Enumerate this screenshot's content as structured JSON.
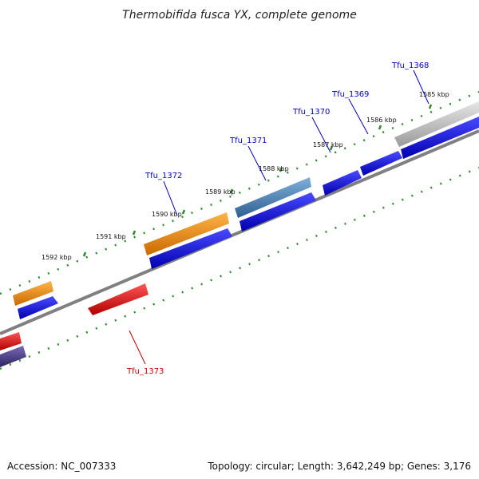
{
  "title": "Thermobifida fusca YX, complete genome",
  "footer": {
    "accession": "Accession: NC_007333",
    "topology": "Topology: circular; Length: 3,642,249 bp; Genes: 3,176"
  },
  "tick_labels": [
    "1585 kbp",
    "1586 kbp",
    "1587 kbp",
    "1588 kbp",
    "1589 kbp",
    "1590 kbp",
    "1591 kbp",
    "1592 kbp"
  ],
  "gene_labels": [
    {
      "text": "Tfu_1368",
      "color": "#0000cc"
    },
    {
      "text": "Tfu_1369",
      "color": "#0000cc"
    },
    {
      "text": "Tfu_1370",
      "color": "#0000cc"
    },
    {
      "text": "Tfu_1371",
      "color": "#0000cc"
    },
    {
      "text": "Tfu_1372",
      "color": "#0000cc"
    },
    {
      "text": "Tfu_1373",
      "color": "#cc0000"
    }
  ],
  "colors": {
    "backbone": "#808080",
    "tick": "#2e8b2e",
    "forward_cds": "#0000ee",
    "reverse_cds": "#ee1111",
    "orange": "#f08a00",
    "steelblue": "#4a7fb0",
    "gray": "#b8b8b8",
    "purple": "#4a3a8a"
  }
}
